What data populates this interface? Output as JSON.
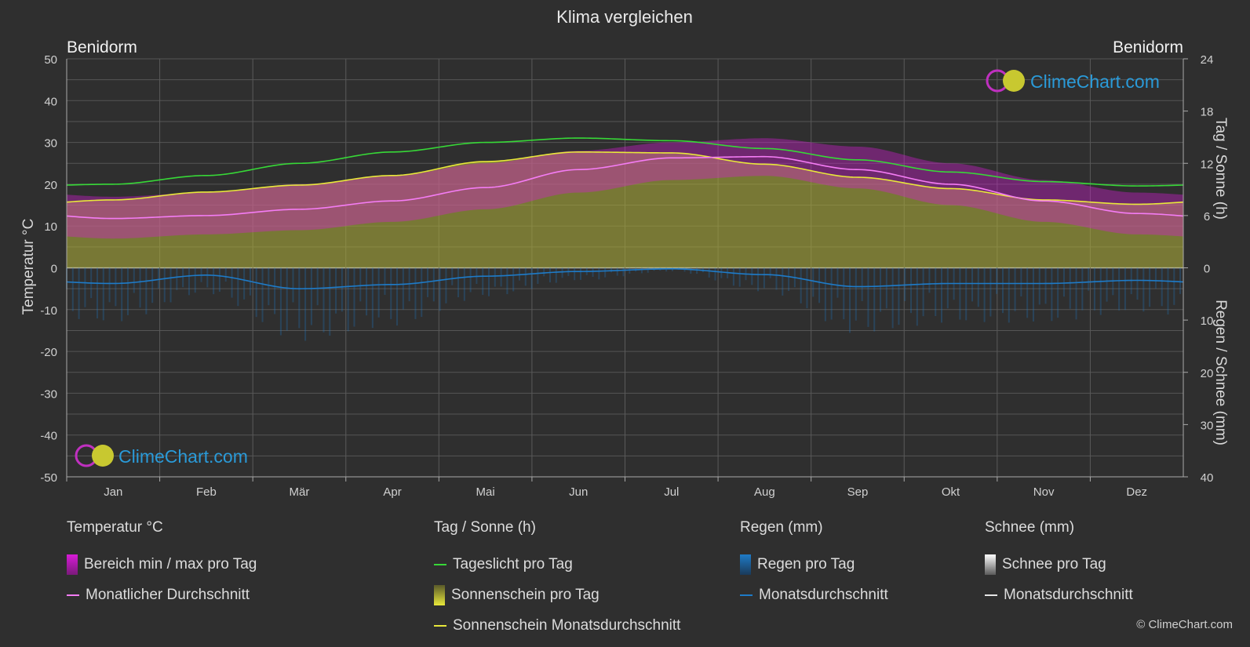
{
  "chart_data": {
    "type": "area",
    "title": "Klima vergleichen",
    "location_left": "Benidorm",
    "location_right": "Benidorm",
    "months": [
      "Jan",
      "Feb",
      "Mär",
      "Apr",
      "Mai",
      "Jun",
      "Jul",
      "Aug",
      "Sep",
      "Okt",
      "Nov",
      "Dez"
    ],
    "left_axis": {
      "label": "Temperatur °C",
      "range": [
        -50,
        50
      ],
      "ticks": [
        50,
        40,
        30,
        20,
        10,
        0,
        -10,
        -20,
        -30,
        -40,
        -50
      ]
    },
    "right_axis_top": {
      "label": "Tag / Sonne (h)",
      "range": [
        0,
        24
      ],
      "ticks": [
        24,
        18,
        12,
        6,
        0
      ]
    },
    "right_axis_bottom": {
      "label": "Regen / Schnee (mm)",
      "range": [
        0,
        40
      ],
      "ticks": [
        0,
        10,
        20,
        30,
        40
      ]
    },
    "series": {
      "temp_max_daily": [
        17,
        18,
        20,
        22,
        25,
        28,
        30,
        31,
        29,
        25,
        21,
        18
      ],
      "temp_min_daily": [
        7,
        8,
        9,
        11,
        14,
        18,
        21,
        22,
        19,
        15,
        11,
        8
      ],
      "temp_monthly_avg": [
        11.8,
        12.5,
        14.0,
        16.0,
        19.2,
        23.5,
        26.3,
        26.6,
        23.5,
        20.0,
        16.0,
        13.0
      ],
      "daylight_hours": [
        9.6,
        10.6,
        12.0,
        13.3,
        14.4,
        14.9,
        14.6,
        13.7,
        12.4,
        11.0,
        9.9,
        9.4
      ],
      "sunshine_hours": [
        7.8,
        8.7,
        9.5,
        10.6,
        12.2,
        13.3,
        13.2,
        11.9,
        10.4,
        9.1,
        7.8,
        7.3
      ],
      "rain_monthly_avg_mm": [
        3.0,
        1.4,
        4.0,
        3.2,
        1.6,
        0.7,
        0.2,
        1.3,
        3.6,
        3.0,
        3.0,
        2.4
      ],
      "snow_monthly_avg_mm": [
        0,
        0,
        0,
        0,
        0,
        0,
        0,
        0,
        0,
        0,
        0,
        0
      ]
    },
    "grid": true
  },
  "colors": {
    "background": "#2f2f2f",
    "temp_range": "#d81bd8",
    "temp_avg": "#f47cf4",
    "daylight": "#37d837",
    "sunshine_fill": "#a7a73a",
    "sunshine_avg": "#e8e83a",
    "rain": "#1e7bc8",
    "snow": "#e6e6e6"
  },
  "watermark": "ClimeChart.com",
  "legend": {
    "temp": {
      "title": "Temperatur °C",
      "items": [
        "Bereich min / max pro Tag",
        "Monatlicher Durchschnitt"
      ]
    },
    "sun": {
      "title": "Tag / Sonne (h)",
      "items": [
        "Tageslicht pro Tag",
        "Sonnenschein pro Tag",
        "Sonnenschein Monatsdurchschnitt"
      ]
    },
    "rain": {
      "title": "Regen (mm)",
      "items": [
        "Regen pro Tag",
        "Monatsdurchschnitt"
      ]
    },
    "snow": {
      "title": "Schnee (mm)",
      "items": [
        "Schnee pro Tag",
        "Monatsdurchschnitt"
      ]
    }
  },
  "copyright": "© ClimeChart.com"
}
